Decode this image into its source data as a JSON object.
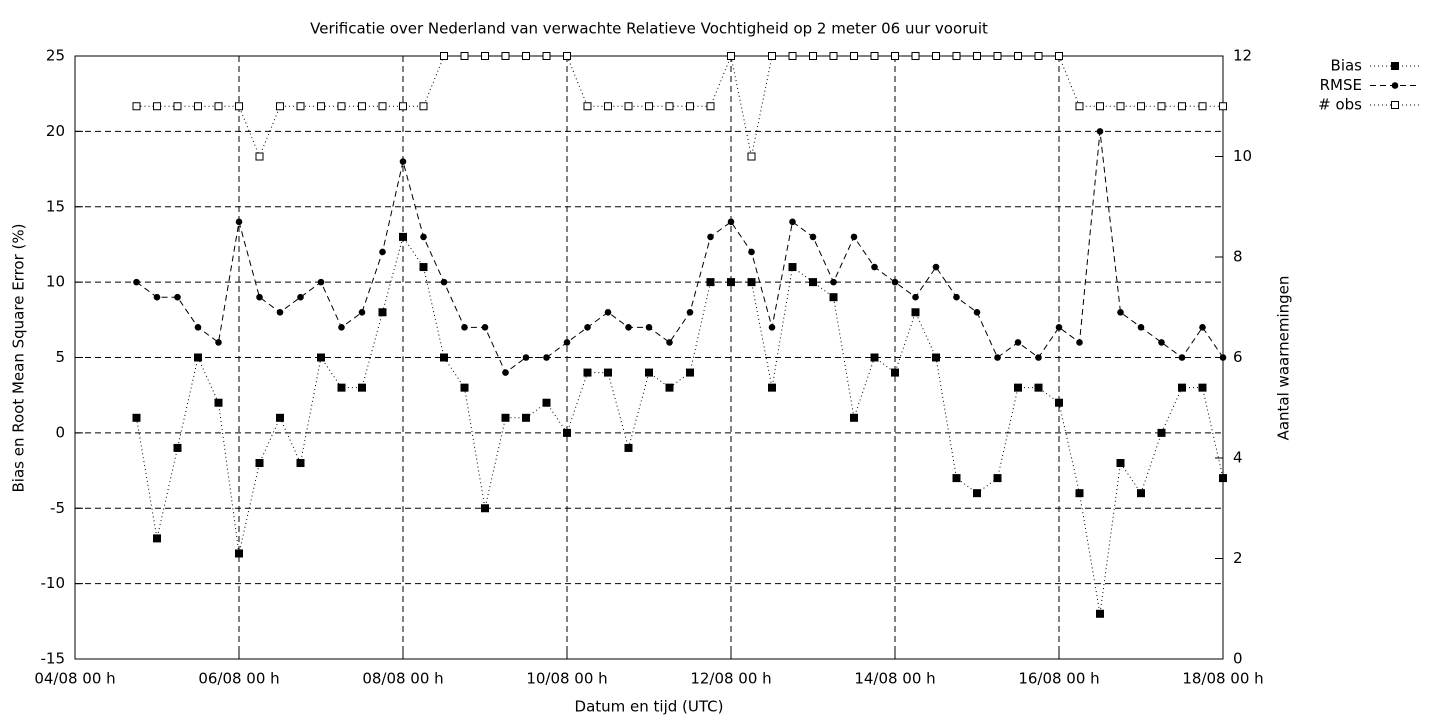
{
  "chart_data": {
    "type": "line",
    "title": "Verificatie over Nederland van verwachte Relatieve Vochtigheid op 2 meter 06 uur vooruit",
    "x_label": "Datum en tijd (UTC)",
    "y_label": "Bias en Root Mean Square Error (%)",
    "y2_label": "Aantal waarnemingen",
    "x": [
      "04/08 18 h",
      "05/08 00 h",
      "05/08 06 h",
      "05/08 12 h",
      "05/08 18 h",
      "06/08 00 h",
      "06/08 06 h",
      "06/08 12 h",
      "06/08 18 h",
      "07/08 00 h",
      "07/08 06 h",
      "07/08 12 h",
      "07/08 18 h",
      "08/08 00 h",
      "08/08 06 h",
      "08/08 12 h",
      "08/08 18 h",
      "09/08 00 h",
      "09/08 06 h",
      "09/08 12 h",
      "09/08 18 h",
      "10/08 00 h",
      "10/08 06 h",
      "10/08 12 h",
      "10/08 18 h",
      "11/08 00 h",
      "11/08 06 h",
      "11/08 12 h",
      "11/08 18 h",
      "12/08 00 h",
      "12/08 06 h",
      "12/08 12 h",
      "12/08 18 h",
      "13/08 00 h",
      "13/08 06 h",
      "13/08 12 h",
      "13/08 18 h",
      "14/08 00 h",
      "14/08 06 h",
      "14/08 12 h",
      "14/08 18 h",
      "15/08 00 h",
      "15/08 06 h",
      "15/08 12 h",
      "15/08 18 h",
      "16/08 00 h",
      "16/08 06 h",
      "16/08 12 h",
      "16/08 18 h",
      "17/08 00 h",
      "17/08 06 h",
      "17/08 12 h",
      "17/08 18 h",
      "18/08 00 h"
    ],
    "xlim": [
      "04/08 00 h",
      "18/08 00 h"
    ],
    "xticks": [
      "04/08 00 h",
      "06/08 00 h",
      "08/08 00 h",
      "10/08 00 h",
      "12/08 00 h",
      "14/08 00 h",
      "16/08 00 h",
      "18/08 00 h"
    ],
    "ylim": [
      -15,
      25
    ],
    "yticks": [
      -15,
      -10,
      -5,
      0,
      5,
      10,
      15,
      20,
      25
    ],
    "y2lim": [
      0,
      12
    ],
    "y2ticks": [
      0,
      2,
      4,
      6,
      8,
      10,
      12
    ],
    "grid": true,
    "legend": "outside-top-right",
    "series": [
      {
        "name": "Bias",
        "color": "#000000",
        "line": "dotted",
        "marker": "square",
        "values": [
          1,
          -7,
          -1,
          5,
          2,
          -8,
          -2,
          1,
          -2,
          5,
          3,
          3,
          8,
          13,
          11,
          5,
          3,
          -5,
          1,
          1,
          2,
          0,
          4,
          4,
          -1,
          4,
          3,
          4,
          10,
          10,
          10,
          3,
          11,
          10,
          9,
          1,
          5,
          4,
          8,
          5,
          -3,
          -4,
          -3,
          3,
          3,
          2,
          -4,
          -12,
          -2,
          -4,
          0,
          3,
          3,
          -3
        ]
      },
      {
        "name": "RMSE",
        "color": "#000000",
        "line": "dashed",
        "marker": "circle",
        "values": [
          10,
          9,
          9,
          7,
          6,
          14,
          9,
          8,
          9,
          10,
          7,
          8,
          12,
          18,
          13,
          10,
          7,
          7,
          4,
          5,
          5,
          6,
          7,
          8,
          7,
          7,
          6,
          8,
          13,
          14,
          12,
          7,
          14,
          13,
          10,
          13,
          11,
          10,
          9,
          11,
          9,
          8,
          5,
          6,
          5,
          7,
          6,
          20,
          8,
          7,
          6,
          5,
          7,
          5
        ]
      },
      {
        "name": "# obs",
        "color": "#000000",
        "line": "dotted",
        "marker": "open-square",
        "axis": "y2",
        "values": [
          11,
          11,
          11,
          11,
          11,
          11,
          10,
          11,
          11,
          11,
          11,
          11,
          11,
          11,
          11,
          12,
          12,
          12,
          12,
          12,
          12,
          12,
          11,
          11,
          11,
          11,
          11,
          11,
          11,
          12,
          10,
          12,
          12,
          12,
          12,
          12,
          12,
          12,
          12,
          12,
          12,
          12,
          12,
          12,
          12,
          12,
          11,
          11,
          11,
          11,
          11,
          11,
          11,
          11
        ]
      }
    ]
  }
}
